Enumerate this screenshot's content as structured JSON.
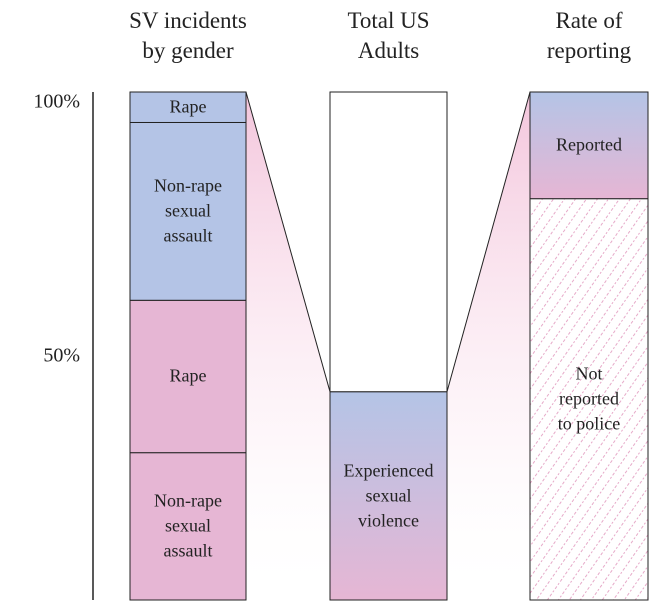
{
  "chart_data": {
    "type": "stacked_bar",
    "ylim": [
      0,
      100
    ],
    "yticks": [
      {
        "value": 100,
        "label": "100%"
      },
      {
        "value": 50,
        "label": "50%"
      }
    ],
    "bars": [
      {
        "title": "SV incidents\nby gender",
        "segments": [
          {
            "label": "Non-rape\nsexual\nassault",
            "value": 29,
            "color": "#e6b6d4"
          },
          {
            "label": "Rape",
            "value": 30,
            "color": "#e6b6d4"
          },
          {
            "label": "Non-rape\nsexual\nassault",
            "value": 35,
            "color": "#b4c4e6"
          },
          {
            "label": "Rape",
            "value": 6,
            "color": "#b4c4e6"
          }
        ]
      },
      {
        "title": "Total US\nAdults",
        "segments": [
          {
            "label": "Experienced\nsexual\nviolence",
            "value": 41,
            "color": [
              "#b4c4e6",
              "#e6b6d4"
            ]
          },
          {
            "label": null,
            "value": 59,
            "color": "#ffffff"
          }
        ]
      },
      {
        "title": "Rate of\nreporting",
        "segments": [
          {
            "label": "Not\nreported\nto police",
            "value": 79,
            "color": "hatch"
          },
          {
            "label": "Reported",
            "value": 21,
            "color": [
              "#b4c4e6",
              "#e6b6d4"
            ]
          }
        ]
      }
    ]
  }
}
